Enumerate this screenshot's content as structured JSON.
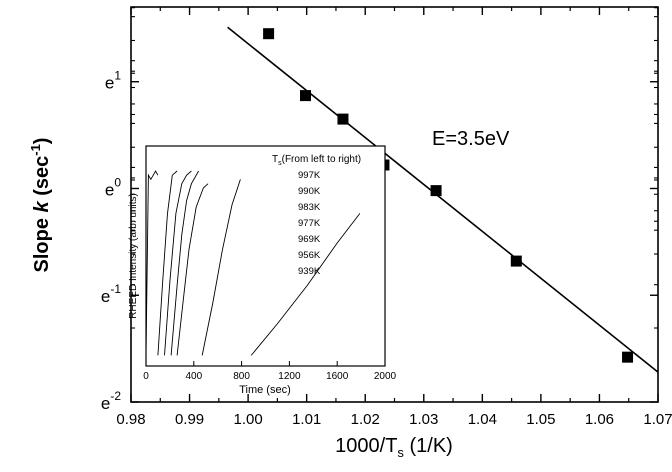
{
  "chart_data": [
    {
      "type": "scatter",
      "xlabel_main": "1000/T",
      "xlabel_sub": "s",
      "xlabel_unit": " (1/K)",
      "ylabel_pre": "Slope ",
      "ylabel_sym": "k",
      "ylabel_unit": " (sec",
      "ylabel_exp": "-1",
      "ylabel_close": ")",
      "xlim": [
        0.98,
        1.07
      ],
      "ylim": [
        -2,
        1.7
      ],
      "y_scale": "ln (base e)",
      "xticks": [
        {
          "value": 0.98,
          "label": "0.98"
        },
        {
          "value": 0.99,
          "label": "0.99"
        },
        {
          "value": 1.0,
          "label": "1.00"
        },
        {
          "value": 1.01,
          "label": "1.01"
        },
        {
          "value": 1.02,
          "label": "1.02"
        },
        {
          "value": 1.03,
          "label": "1.03"
        },
        {
          "value": 1.04,
          "label": "1.04"
        },
        {
          "value": 1.05,
          "label": "1.05"
        },
        {
          "value": 1.06,
          "label": "1.06"
        },
        {
          "value": 1.07,
          "label": "1.07"
        }
      ],
      "yticks": [
        {
          "value": 1,
          "base": "e",
          "exp": "1"
        },
        {
          "value": 0,
          "base": "e",
          "exp": "0"
        },
        {
          "value": -1,
          "base": "e",
          "exp": "-1"
        },
        {
          "value": -2,
          "base": "e",
          "exp": "-2"
        }
      ],
      "points": [
        {
          "x": 1.0035,
          "y": 1.45
        },
        {
          "x": 1.0098,
          "y": 0.87
        },
        {
          "x": 1.0162,
          "y": 0.65
        },
        {
          "x": 1.0232,
          "y": 0.22
        },
        {
          "x": 1.0321,
          "y": -0.02
        },
        {
          "x": 1.0458,
          "y": -0.68
        },
        {
          "x": 1.0648,
          "y": -1.58
        }
      ],
      "fit_line": {
        "x": [
          0.9965,
          1.07
        ],
        "y": [
          1.51,
          -1.72
        ]
      },
      "annotation": "E=3.5eV",
      "grid": false,
      "marker": "filled-square"
    },
    {
      "type": "line",
      "role": "inset",
      "xlabel": "Time (sec)",
      "ylabel": "RHEED Intensity (arb. units)",
      "xlim": [
        0,
        2000
      ],
      "xticks": [
        "0",
        "400",
        "800",
        "1200",
        "1600",
        "2000"
      ],
      "legend_title_pre": "T",
      "legend_title_sub": "s",
      "legend_title_post": "(From left to right)",
      "series": [
        {
          "name": "997K",
          "x": [
            0,
            20,
            40,
            60,
            80,
            100
          ],
          "y": [
            0.05,
            0.9,
            0.88,
            0.9,
            0.92,
            0.9
          ]
        },
        {
          "name": "990K",
          "x": [
            100,
            140,
            180,
            220,
            260
          ],
          "y": [
            0.05,
            0.4,
            0.72,
            0.9,
            0.92
          ]
        },
        {
          "name": "983K",
          "x": [
            155,
            200,
            250,
            300,
            340,
            380
          ],
          "y": [
            0.05,
            0.4,
            0.72,
            0.86,
            0.9,
            0.92
          ]
        },
        {
          "name": "977K",
          "x": [
            210,
            260,
            300,
            340,
            380,
            440
          ],
          "y": [
            0.05,
            0.38,
            0.62,
            0.78,
            0.86,
            0.92
          ]
        },
        {
          "name": "969K",
          "x": [
            260,
            310,
            360,
            420,
            480,
            520
          ],
          "y": [
            0.05,
            0.3,
            0.55,
            0.75,
            0.84,
            0.86
          ]
        },
        {
          "name": "956K",
          "x": [
            470,
            560,
            640,
            720,
            790
          ],
          "y": [
            0.05,
            0.3,
            0.55,
            0.76,
            0.88
          ]
        },
        {
          "name": "939K",
          "x": [
            880,
            1100,
            1350,
            1600,
            1790
          ],
          "y": [
            0.05,
            0.2,
            0.38,
            0.58,
            0.72
          ]
        }
      ]
    }
  ]
}
